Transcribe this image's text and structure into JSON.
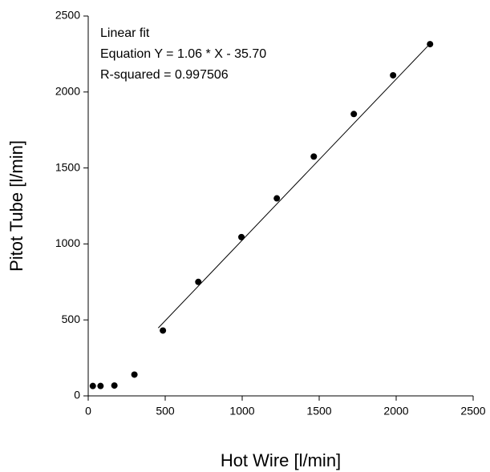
{
  "chart_data": {
    "type": "scatter",
    "x_label": "Hot Wire [l/min]",
    "y_label": "Pitot Tube [l/min]",
    "annotations": [
      "Linear fit",
      "Equation Y = 1.06 * X - 35.70",
      "R-squared = 0.997506"
    ],
    "x": [
      30,
      80,
      170,
      300,
      485,
      715,
      995,
      1225,
      1465,
      1725,
      1980,
      2220
    ],
    "values": [
      65,
      65,
      68,
      140,
      430,
      750,
      1045,
      1300,
      1575,
      1855,
      2110,
      2315
    ],
    "color": "#000000",
    "fit_line": {
      "x": [
        455,
        2225
      ],
      "values": [
        447,
        2323
      ],
      "color": "#000000"
    },
    "xlim": [
      0,
      2500
    ],
    "xticks": [
      0,
      500,
      1000,
      1500,
      2000,
      2500
    ],
    "ylim": [
      0,
      2500
    ],
    "yticks": [
      0,
      500,
      1000,
      1500,
      2000,
      2500
    ],
    "grid": false
  }
}
